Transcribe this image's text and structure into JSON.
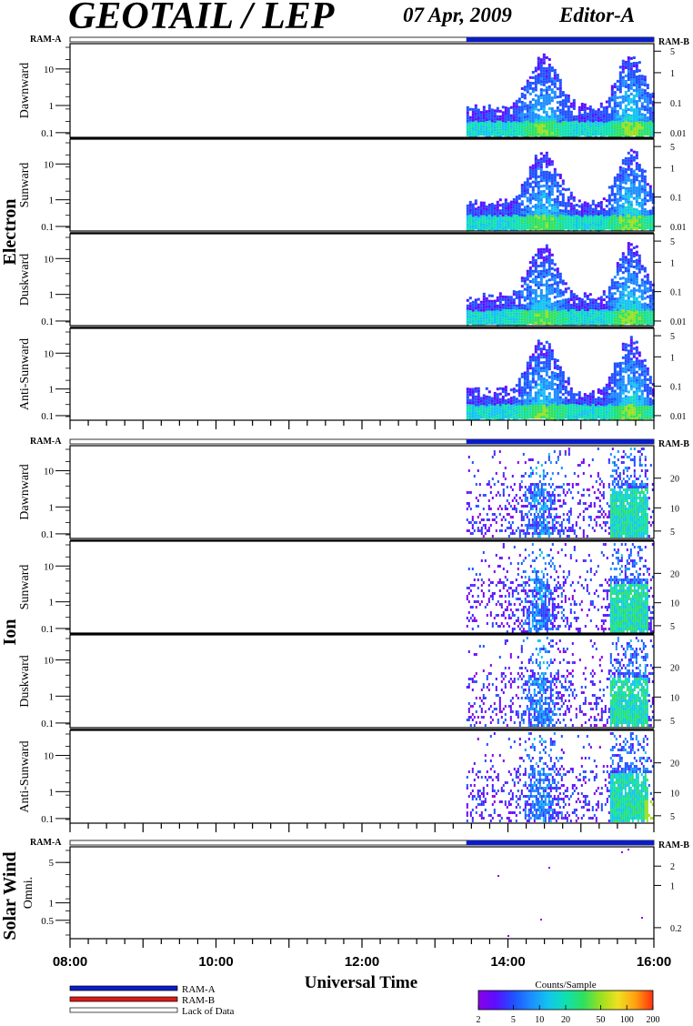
{
  "header": {
    "title": "GEOTAIL / LEP",
    "date": "07 Apr, 2009",
    "editor": "Editor-A"
  },
  "colors": {
    "ram_a": "#0a1cc8",
    "ram_b": "#e01818",
    "lack": "#ffffff"
  },
  "chart_data": {
    "type": "heatmap",
    "xlabel": "Universal Time",
    "x_ticks": [
      "08:00",
      "10:00",
      "12:00",
      "14:00",
      "16:00"
    ],
    "x_range_hours": [
      8,
      16
    ],
    "data_start_hour": 13.43,
    "groups": [
      {
        "name": "Electron",
        "mode_left": "RAM-A",
        "mode_right": "RAM-B",
        "panels": [
          {
            "name": "Dawnward",
            "left_ticks": [
              "10",
              "1",
              "0.1"
            ],
            "right_ticks": [
              "5",
              "1",
              "0.1",
              "0.01"
            ]
          },
          {
            "name": "Sunward",
            "left_ticks": [
              "10",
              "1",
              "0.1"
            ],
            "right_ticks": [
              "5",
              "1",
              "0.1",
              "0.01"
            ]
          },
          {
            "name": "Duskward",
            "left_ticks": [
              "10",
              "1",
              "0.1"
            ],
            "right_ticks": [
              "5",
              "1",
              "0.1",
              "0.01"
            ]
          },
          {
            "name": "Anti-Sunward",
            "left_ticks": [
              "10",
              "1",
              "0.1"
            ],
            "right_ticks": [
              "5",
              "1",
              "0.1",
              "0.01"
            ]
          }
        ]
      },
      {
        "name": "Ion",
        "mode_left": "RAM-A",
        "mode_right": "RAM-B",
        "panels": [
          {
            "name": "Dawnward",
            "left_ticks": [
              "10",
              "1",
              "0.1"
            ],
            "right_ticks": [
              "20",
              "10",
              "5"
            ]
          },
          {
            "name": "Sunward",
            "left_ticks": [
              "10",
              "1",
              "0.1"
            ],
            "right_ticks": [
              "20",
              "10",
              "5"
            ]
          },
          {
            "name": "Duskward",
            "left_ticks": [
              "10",
              "1",
              "0.1"
            ],
            "right_ticks": [
              "20",
              "10",
              "5"
            ]
          },
          {
            "name": "Anti-Sunward",
            "left_ticks": [
              "10",
              "1",
              "0.1"
            ],
            "right_ticks": [
              "20",
              "10",
              "5"
            ]
          }
        ]
      },
      {
        "name": "Solar Wind",
        "mode_left": "RAM-A",
        "mode_right": "RAM-B",
        "panels": [
          {
            "name": "Omni.",
            "left_ticks": [
              "5",
              "1",
              "0.5"
            ],
            "right_ticks": [
              "2",
              "1",
              "0.2"
            ]
          }
        ]
      }
    ],
    "legend": {
      "items": [
        "RAM-A",
        "RAM-B",
        "Lack of Data"
      ]
    },
    "colorbar": {
      "title": "Counts/Sample",
      "ticks": [
        "2",
        "5",
        "10",
        "20",
        "50",
        "100",
        "200"
      ]
    }
  }
}
